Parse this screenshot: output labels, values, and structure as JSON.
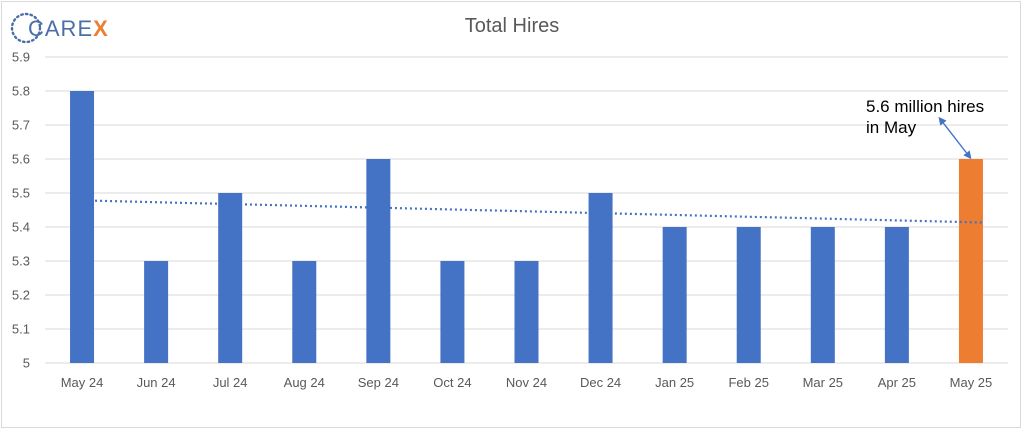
{
  "logo": {
    "text_main": "CARE",
    "text_accent": "X"
  },
  "colors": {
    "bar": "#4472c4",
    "highlight": "#ed7d31",
    "trend": "#4472c4",
    "arrow": "#4472c4",
    "grid": "#d9d9d9"
  },
  "chart_data": {
    "type": "bar",
    "title": "Total Hires",
    "categories": [
      "May 24",
      "Jun 24",
      "Jul 24",
      "Aug 24",
      "Sep 24",
      "Oct 24",
      "Nov 24",
      "Dec 24",
      "Jan 25",
      "Feb 25",
      "Mar 25",
      "Apr 25",
      "May 25"
    ],
    "values": [
      5.8,
      5.3,
      5.5,
      5.3,
      5.6,
      5.3,
      5.3,
      5.5,
      5.4,
      5.4,
      5.4,
      5.4,
      5.6
    ],
    "highlight_index": 12,
    "ylim": [
      5,
      5.9
    ],
    "yticks": [
      "5",
      "5.1",
      "5.2",
      "5.3",
      "5.4",
      "5.5",
      "5.6",
      "5.7",
      "5.8",
      "5.9"
    ],
    "grid": true,
    "trendline": {
      "type": "linear",
      "style": "dotted"
    },
    "annotation": {
      "lines": [
        "5.6 million hires",
        "in May"
      ],
      "target_index": 12
    }
  }
}
